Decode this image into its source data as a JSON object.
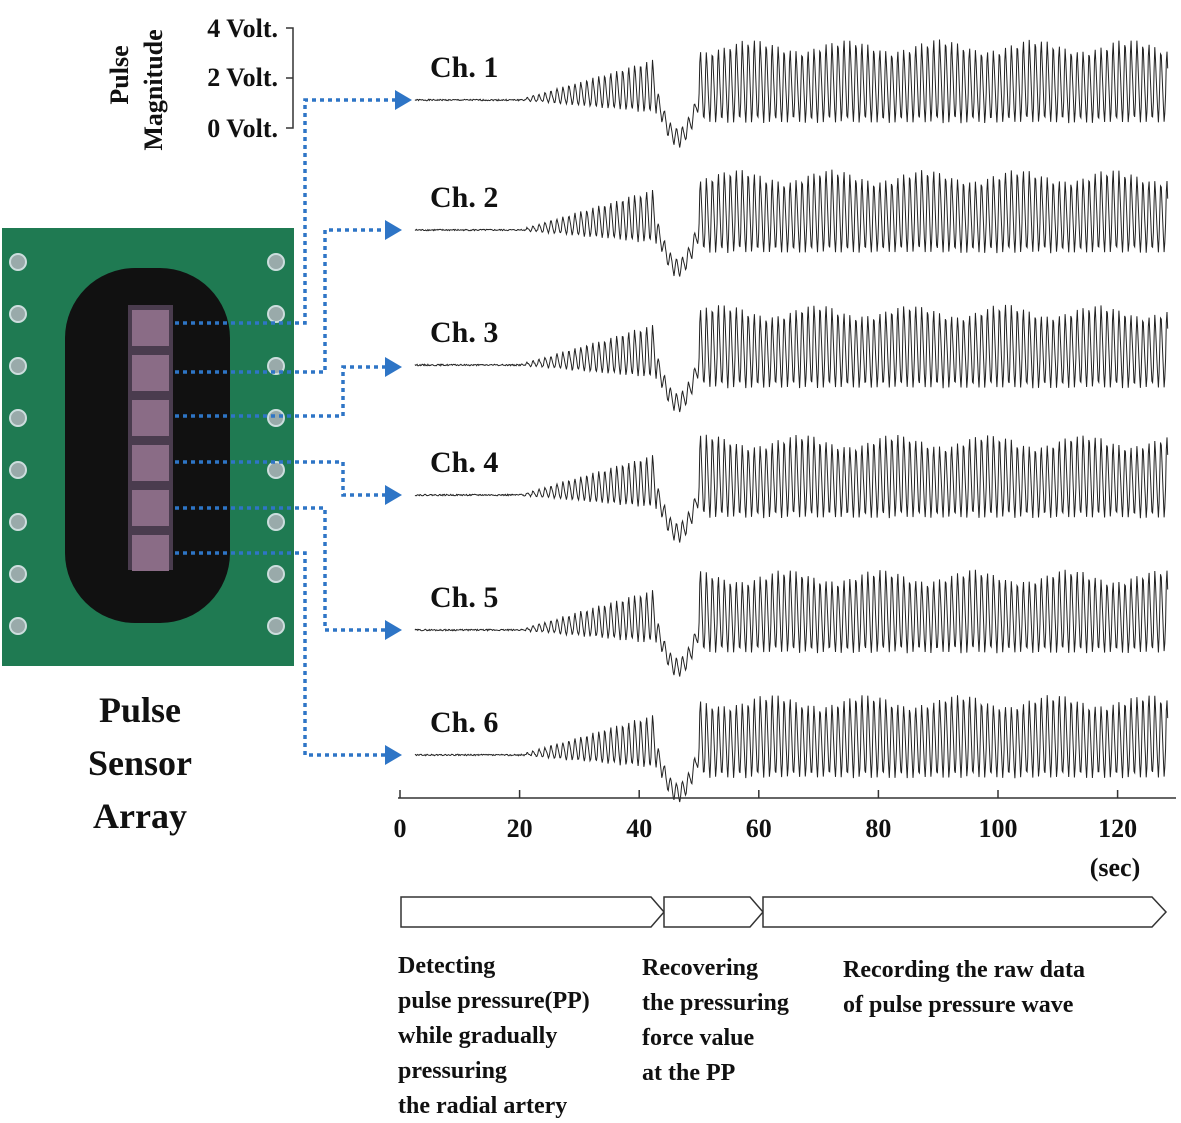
{
  "magnitude_axis": {
    "label_lines": [
      "Pulse",
      "Magnitude"
    ],
    "ticks": [
      "4 Volt.",
      "2 Volt.",
      "0 Volt."
    ]
  },
  "channels": [
    "Ch. 1",
    "Ch. 2",
    "Ch. 3",
    "Ch. 4",
    "Ch. 5",
    "Ch. 6"
  ],
  "time_axis": {
    "ticks": [
      0,
      20,
      40,
      60,
      80,
      100,
      120
    ],
    "unit": "(sec)"
  },
  "sensor_label": [
    "Pulse",
    "Sensor",
    "Array"
  ],
  "phases": [
    {
      "lines": [
        "Detecting",
        "pulse pressure(PP)",
        "while gradually",
        "pressuring",
        "the radial artery"
      ]
    },
    {
      "lines": [
        "Recovering",
        "the pressuring",
        "force value",
        "at the PP"
      ]
    },
    {
      "lines": [
        "Recording the raw data",
        "of pulse pressure wave"
      ]
    }
  ]
}
